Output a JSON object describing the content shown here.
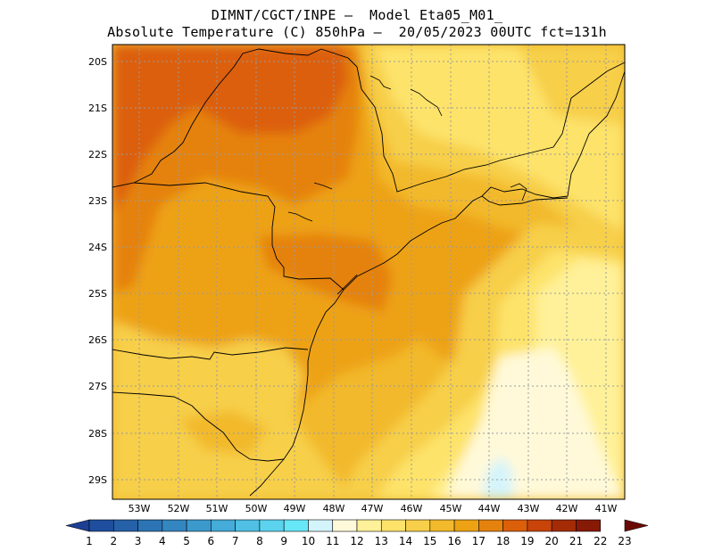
{
  "title": {
    "line1": "DIMNT/CGCT/INPE –  Model Eta05_M01_",
    "line2": "Absolute Temperature (C) 850hPa –  20/05/2023 00UTC fct=131h"
  },
  "lat_labels": [
    "20S",
    "21S",
    "22S",
    "23S",
    "24S",
    "25S",
    "26S",
    "27S",
    "28S",
    "29S"
  ],
  "lon_labels": [
    "53W",
    "52W",
    "51W",
    "50W",
    "49W",
    "48W",
    "47W",
    "46W",
    "45W",
    "44W",
    "43W",
    "42W",
    "41W"
  ],
  "colorbar": {
    "labels": [
      "1",
      "2",
      "3",
      "4",
      "5",
      "6",
      "7",
      "8",
      "9",
      "10",
      "11",
      "12",
      "13",
      "14",
      "15",
      "16",
      "17",
      "18",
      "19",
      "20",
      "21",
      "22",
      "23"
    ],
    "colors": [
      "#1c3f94",
      "#1f4e9e",
      "#2561a8",
      "#2c74b4",
      "#3486c0",
      "#3c99cc",
      "#45abd8",
      "#4fbfe4",
      "#5bd3ee",
      "#66e7f8",
      "#d4f4fb",
      "#fff9d9",
      "#fff199",
      "#fde36a",
      "#f7cf4a",
      "#f2b92c",
      "#eda214",
      "#e5820e",
      "#dc5f0a",
      "#c84408",
      "#a32c06",
      "#871a05",
      "#6b0a04"
    ]
  }
}
